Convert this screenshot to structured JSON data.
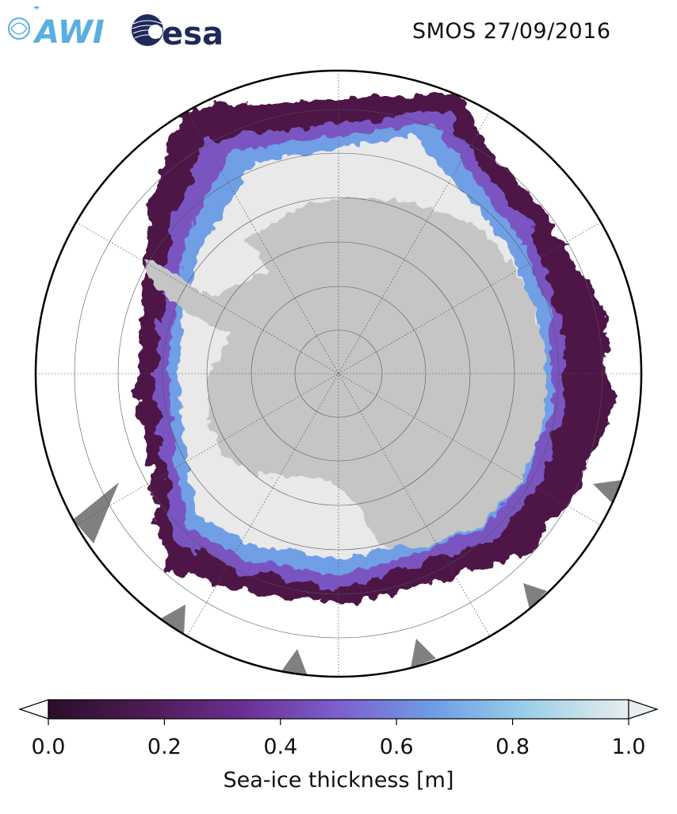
{
  "header": {
    "title": "SMOS 27/09/2016",
    "logos": [
      {
        "name": "awi-logo",
        "text": "AWI"
      },
      {
        "name": "esa-logo",
        "text": "esa"
      }
    ]
  },
  "map": {
    "projection": "south-polar-stereographic",
    "grid": true,
    "colors": {
      "land": "#c5c5c5",
      "missing_data": "#808080",
      "ocean": "#ffffff",
      "thick_ice": "#e9e9ea",
      "thin_ice": "#4d1546",
      "mid_ice": "#7a55c2"
    }
  },
  "colorbar": {
    "label": "Sea-ice thickness [m]",
    "min": 0.0,
    "max": 1.0,
    "ticks": [
      "0.0",
      "0.2",
      "0.4",
      "0.6",
      "0.8",
      "1.0"
    ],
    "extend": "both",
    "colormap": [
      "#2a0f2a",
      "#4d1b54",
      "#6a2e8f",
      "#7d5fd0",
      "#6f9fe6",
      "#9ed0e8",
      "#e6eeee"
    ]
  }
}
